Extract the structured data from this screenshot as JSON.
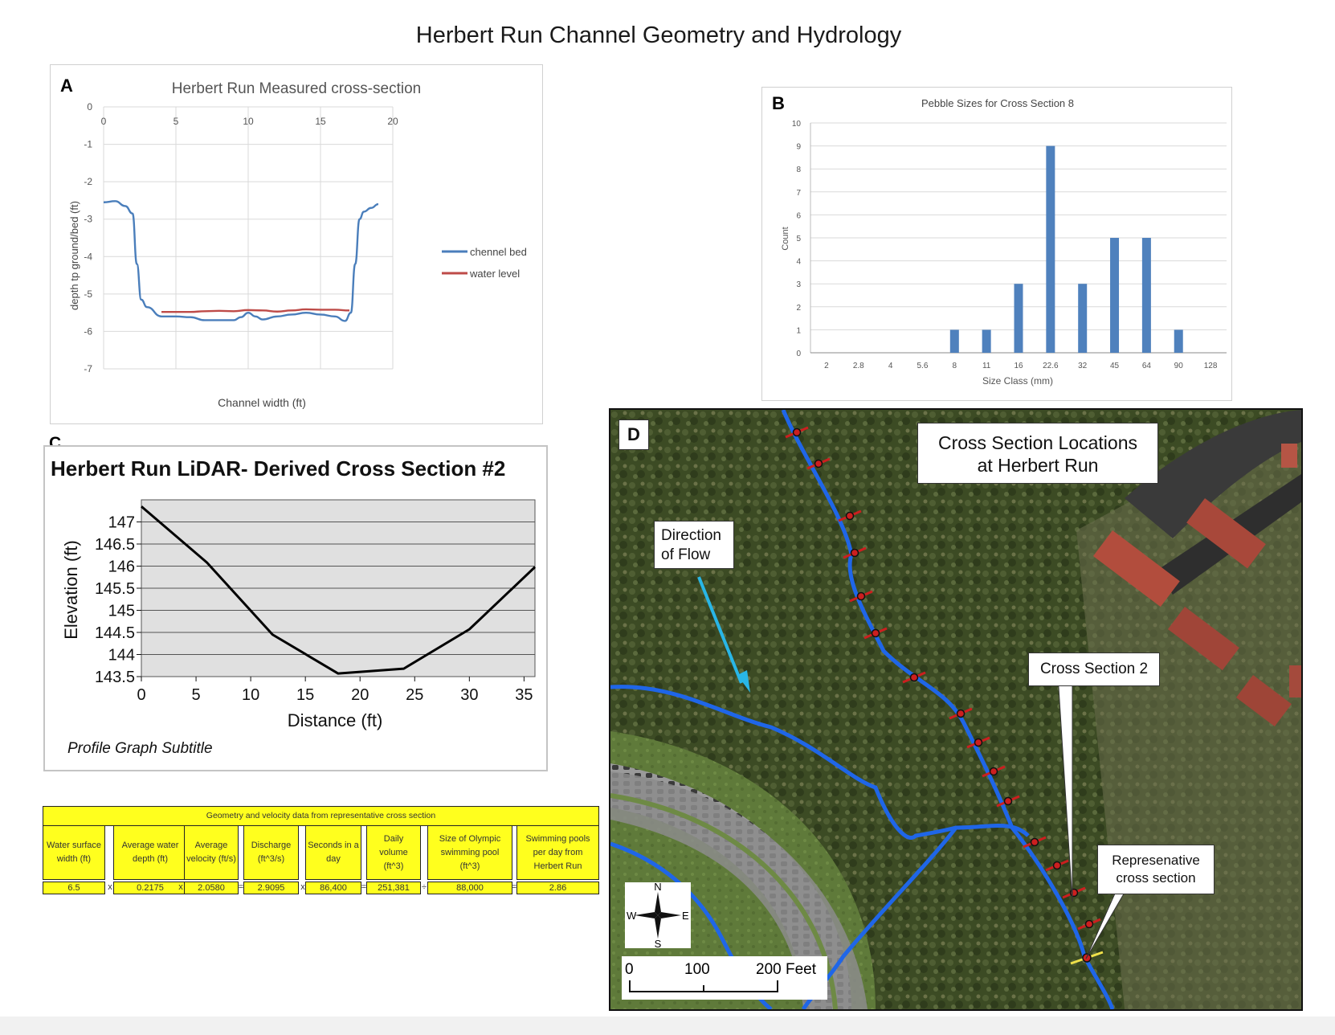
{
  "main_title": "Herbert Run Channel Geometry and Hydrology",
  "panel_a": {
    "letter": "A",
    "chart_data": {
      "type": "line",
      "title": "Herbert Run Measured cross-section",
      "xlabel": "Channel width (ft)",
      "ylabel": "depth tp ground/bed (ft)",
      "xlim": [
        0,
        20
      ],
      "ylim": [
        -7,
        0
      ],
      "x_ticks": [
        "0",
        "5",
        "10",
        "15",
        "20"
      ],
      "y_ticks": [
        "0",
        "-1",
        "-2",
        "-3",
        "-4",
        "-5",
        "-6",
        "-7"
      ],
      "grid": true,
      "legend_position": "right",
      "series": [
        {
          "name": "chennel bed",
          "color": "#4a7ebb",
          "x": [
            0,
            0.8,
            1.5,
            2,
            2.3,
            2.6,
            3,
            4,
            5,
            6,
            7,
            8,
            9,
            9.5,
            10,
            10.5,
            11,
            12,
            13,
            14,
            15,
            16,
            16.7,
            17.1,
            17.4,
            17.7,
            18,
            18.5,
            19
          ],
          "y": [
            -2.55,
            -2.52,
            -2.65,
            -2.85,
            -4.2,
            -5.15,
            -5.35,
            -5.6,
            -5.6,
            -5.62,
            -5.7,
            -5.7,
            -5.7,
            -5.62,
            -5.5,
            -5.6,
            -5.68,
            -5.6,
            -5.55,
            -5.5,
            -5.55,
            -5.6,
            -5.72,
            -5.5,
            -4.2,
            -3.0,
            -2.8,
            -2.7,
            -2.6
          ]
        },
        {
          "name": "water level",
          "color": "#be4b48",
          "x": [
            4,
            5,
            6,
            7,
            8,
            9,
            10,
            11,
            12,
            13,
            14,
            15,
            16,
            17
          ],
          "y": [
            -5.48,
            -5.48,
            -5.48,
            -5.46,
            -5.45,
            -5.46,
            -5.43,
            -5.44,
            -5.47,
            -5.44,
            -5.41,
            -5.42,
            -5.42,
            -5.44
          ]
        }
      ]
    }
  },
  "panel_b": {
    "letter": "B",
    "chart_data": {
      "type": "bar",
      "title": "Pebble Sizes for Cross Section 8",
      "xlabel": "Size Class (mm)",
      "ylabel": "Count",
      "ylim": [
        0,
        10
      ],
      "y_ticks": [
        "0",
        "1",
        "2",
        "3",
        "4",
        "5",
        "6",
        "7",
        "8",
        "9",
        "10"
      ],
      "categories": [
        "2",
        "2.8",
        "4",
        "5.6",
        "8",
        "11",
        "16",
        "22.6",
        "32",
        "45",
        "64",
        "90",
        "128"
      ],
      "values": [
        0,
        0,
        0,
        0,
        1,
        1,
        3,
        9,
        3,
        5,
        5,
        1,
        0
      ],
      "color": "#4f81bd",
      "grid": true
    }
  },
  "panel_c": {
    "letter": "C",
    "chart_data": {
      "type": "line",
      "title": "Herbert Run LiDAR- Derived Cross Section #2",
      "subtitle": "Profile Graph Subtitle",
      "xlabel": "Distance (ft)",
      "ylabel": "Elevation (ft)",
      "xlim": [
        0,
        36
      ],
      "ylim": [
        143.5,
        147.5
      ],
      "x_ticks": [
        "0",
        "5",
        "10",
        "15",
        "20",
        "25",
        "30",
        "35"
      ],
      "y_ticks": [
        "143.5",
        "144",
        "144.5",
        "145",
        "145.5",
        "146",
        "146.5",
        "147"
      ],
      "grid": true,
      "series": [
        {
          "color": "#000000",
          "x": [
            0,
            6,
            12,
            18,
            24,
            30,
            36
          ],
          "y": [
            147.35,
            146.08,
            144.45,
            143.57,
            143.68,
            144.57,
            145.98
          ]
        }
      ]
    }
  },
  "table": {
    "title": "Geometry and velocity data from representative cross section",
    "headers": [
      "Water surface width (ft)",
      "Average water depth (ft)",
      "Average velocity (ft/s)",
      "Discharge (ft^3/s)",
      "Seconds in a day",
      "Daily volume (ft^3)",
      "Size of Olympic swimming pool (ft^3)",
      "Swimming pools per day from Herbert Run"
    ],
    "values": [
      "6.5",
      "0.2175",
      "2.0580",
      "2.9095",
      "86,400",
      "251,381",
      "88,000",
      "2.86"
    ],
    "operators": [
      "x",
      "x",
      "=",
      "x",
      "=",
      "÷",
      "="
    ]
  },
  "panel_d": {
    "letter": "D",
    "title_line1": "Cross Section Locations",
    "title_line2": "at Herbert Run",
    "flow_line1": "Direction",
    "flow_line2": "of Flow",
    "cross_section_label": "Cross Section 2",
    "rep_line1": "Represenative",
    "rep_line2": "cross section",
    "compass": {
      "n": "N",
      "s": "S",
      "e": "E",
      "w": "W"
    },
    "scale": {
      "t0": "0",
      "t1": "100",
      "t2": "200 Feet"
    },
    "colors": {
      "stream": "#1f66e8",
      "trees": "#3c4b24",
      "road": "#8c8c8c",
      "marker": "#cc1f1f",
      "arrow": "#29b6e6"
    }
  }
}
